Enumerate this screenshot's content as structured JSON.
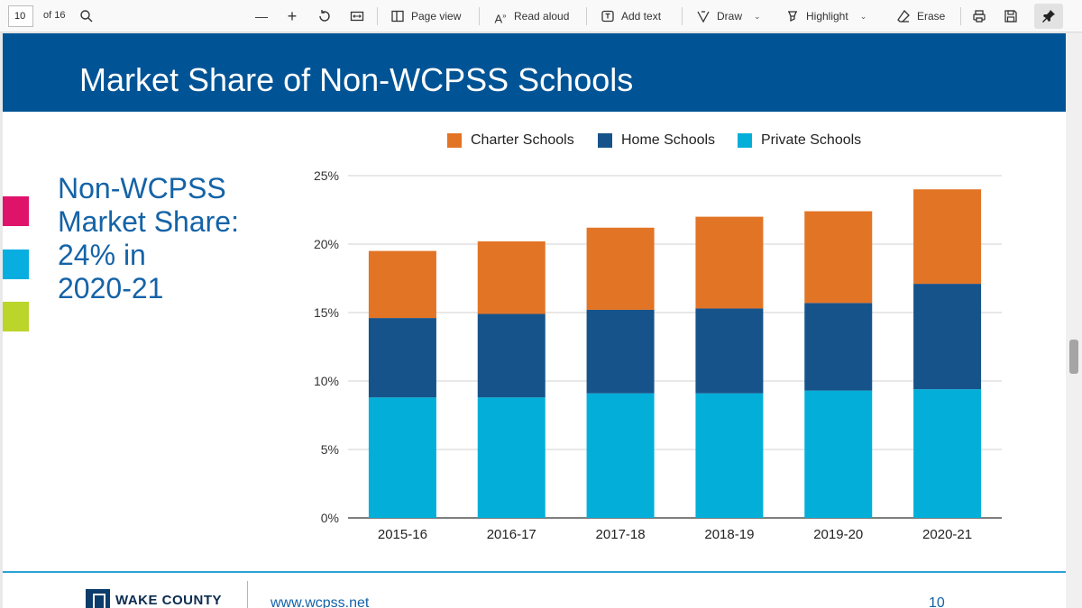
{
  "toolbar": {
    "page_number": "10",
    "page_count": "of 16",
    "page_view": "Page view",
    "read_aloud": "Read aloud",
    "add_text": "Add text",
    "draw": "Draw",
    "highlight": "Highlight",
    "erase": "Erase"
  },
  "slide": {
    "title": "Market Share of Non-WCPSS Schools",
    "callout_lines": [
      "Non-WCPSS",
      "Market Share:",
      "24% in",
      "2020-21"
    ],
    "footer_logo": "WAKE COUNTY",
    "footer_url": "www.wcpss.net",
    "footer_page": "10",
    "accent_colors": [
      "#e0136b",
      "#08aee0",
      "#bcd52b"
    ]
  },
  "chart_data": {
    "type": "bar",
    "stacked": true,
    "categories": [
      "2015-16",
      "2016-17",
      "2017-18",
      "2018-19",
      "2019-20",
      "2020-21"
    ],
    "series": [
      {
        "name": "Private Schools",
        "color": "#03afd8",
        "values": [
          8.8,
          8.8,
          9.1,
          9.1,
          9.3,
          9.4
        ]
      },
      {
        "name": "Home Schools",
        "color": "#17538b",
        "values": [
          5.8,
          6.1,
          6.1,
          6.2,
          6.4,
          7.7
        ]
      },
      {
        "name": "Charter Schools",
        "color": "#e27425",
        "values": [
          4.9,
          5.3,
          6.0,
          6.7,
          6.7,
          6.9
        ]
      }
    ],
    "legend_order": [
      "Charter Schools",
      "Home Schools",
      "Private Schools"
    ],
    "ylim": [
      0,
      25
    ],
    "yticks": [
      "0%",
      "5%",
      "10%",
      "15%",
      "20%",
      "25%"
    ],
    "ytick_values": [
      0,
      5,
      10,
      15,
      20,
      25
    ],
    "grid": true,
    "legend_position": "top"
  }
}
